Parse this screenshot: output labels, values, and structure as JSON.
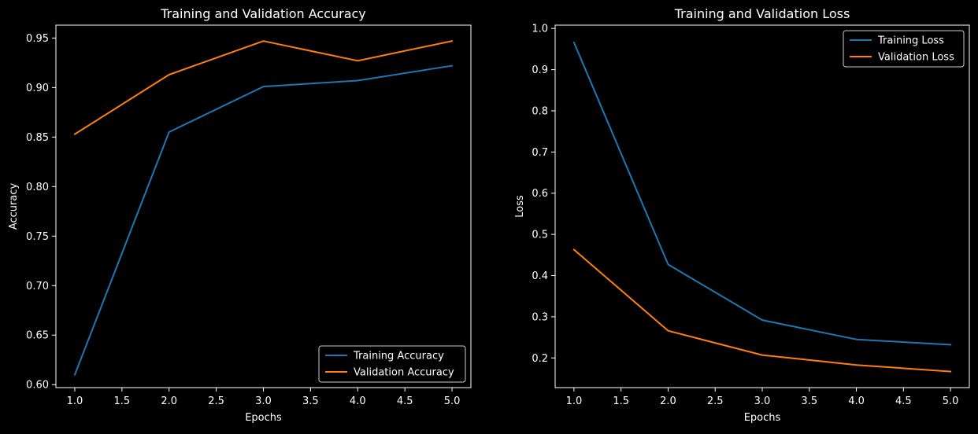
{
  "chart_data": [
    {
      "type": "line",
      "title": "Training and Validation Accuracy",
      "xlabel": "Epochs",
      "ylabel": "Accuracy",
      "x": [
        1,
        2,
        3,
        4,
        5
      ],
      "xlim": [
        0.8,
        5.2
      ],
      "ylim": [
        0.597,
        0.963
      ],
      "xticks": [
        1.0,
        1.5,
        2.0,
        2.5,
        3.0,
        3.5,
        4.0,
        4.5,
        5.0
      ],
      "xtick_labels": [
        "1.0",
        "1.5",
        "2.0",
        "2.5",
        "3.0",
        "3.5",
        "4.0",
        "4.5",
        "5.0"
      ],
      "yticks": [
        0.6,
        0.65,
        0.7,
        0.75,
        0.8,
        0.85,
        0.9,
        0.95
      ],
      "ytick_labels": [
        "0.60",
        "0.65",
        "0.70",
        "0.75",
        "0.80",
        "0.85",
        "0.90",
        "0.95"
      ],
      "grid": false,
      "legend_position": "lower-right",
      "series": [
        {
          "name": "Training Accuracy",
          "color": "#1f77b4",
          "values": [
            0.61,
            0.855,
            0.901,
            0.907,
            0.922
          ]
        },
        {
          "name": "Validation Accuracy",
          "color": "#ff7f0e",
          "values": [
            0.853,
            0.913,
            0.947,
            0.927,
            0.947
          ]
        }
      ]
    },
    {
      "type": "line",
      "title": "Training and Validation Loss",
      "xlabel": "Epochs",
      "ylabel": "Loss",
      "x": [
        1,
        2,
        3,
        4,
        5
      ],
      "xlim": [
        0.8,
        5.2
      ],
      "ylim": [
        0.128,
        1.008
      ],
      "xticks": [
        1.0,
        1.5,
        2.0,
        2.5,
        3.0,
        3.5,
        4.0,
        4.5,
        5.0
      ],
      "xtick_labels": [
        "1.0",
        "1.5",
        "2.0",
        "2.5",
        "3.0",
        "3.5",
        "4.0",
        "4.5",
        "5.0"
      ],
      "yticks": [
        0.2,
        0.3,
        0.4,
        0.5,
        0.6,
        0.7,
        0.8,
        0.9,
        1.0
      ],
      "ytick_labels": [
        "0.2",
        "0.3",
        "0.4",
        "0.5",
        "0.6",
        "0.7",
        "0.8",
        "0.9",
        "1.0"
      ],
      "grid": false,
      "legend_position": "upper-right",
      "series": [
        {
          "name": "Training Loss",
          "color": "#1f77b4",
          "values": [
            0.966,
            0.427,
            0.292,
            0.245,
            0.232
          ]
        },
        {
          "name": "Validation Loss",
          "color": "#ff7f0e",
          "values": [
            0.463,
            0.266,
            0.207,
            0.183,
            0.167
          ]
        }
      ]
    }
  ]
}
